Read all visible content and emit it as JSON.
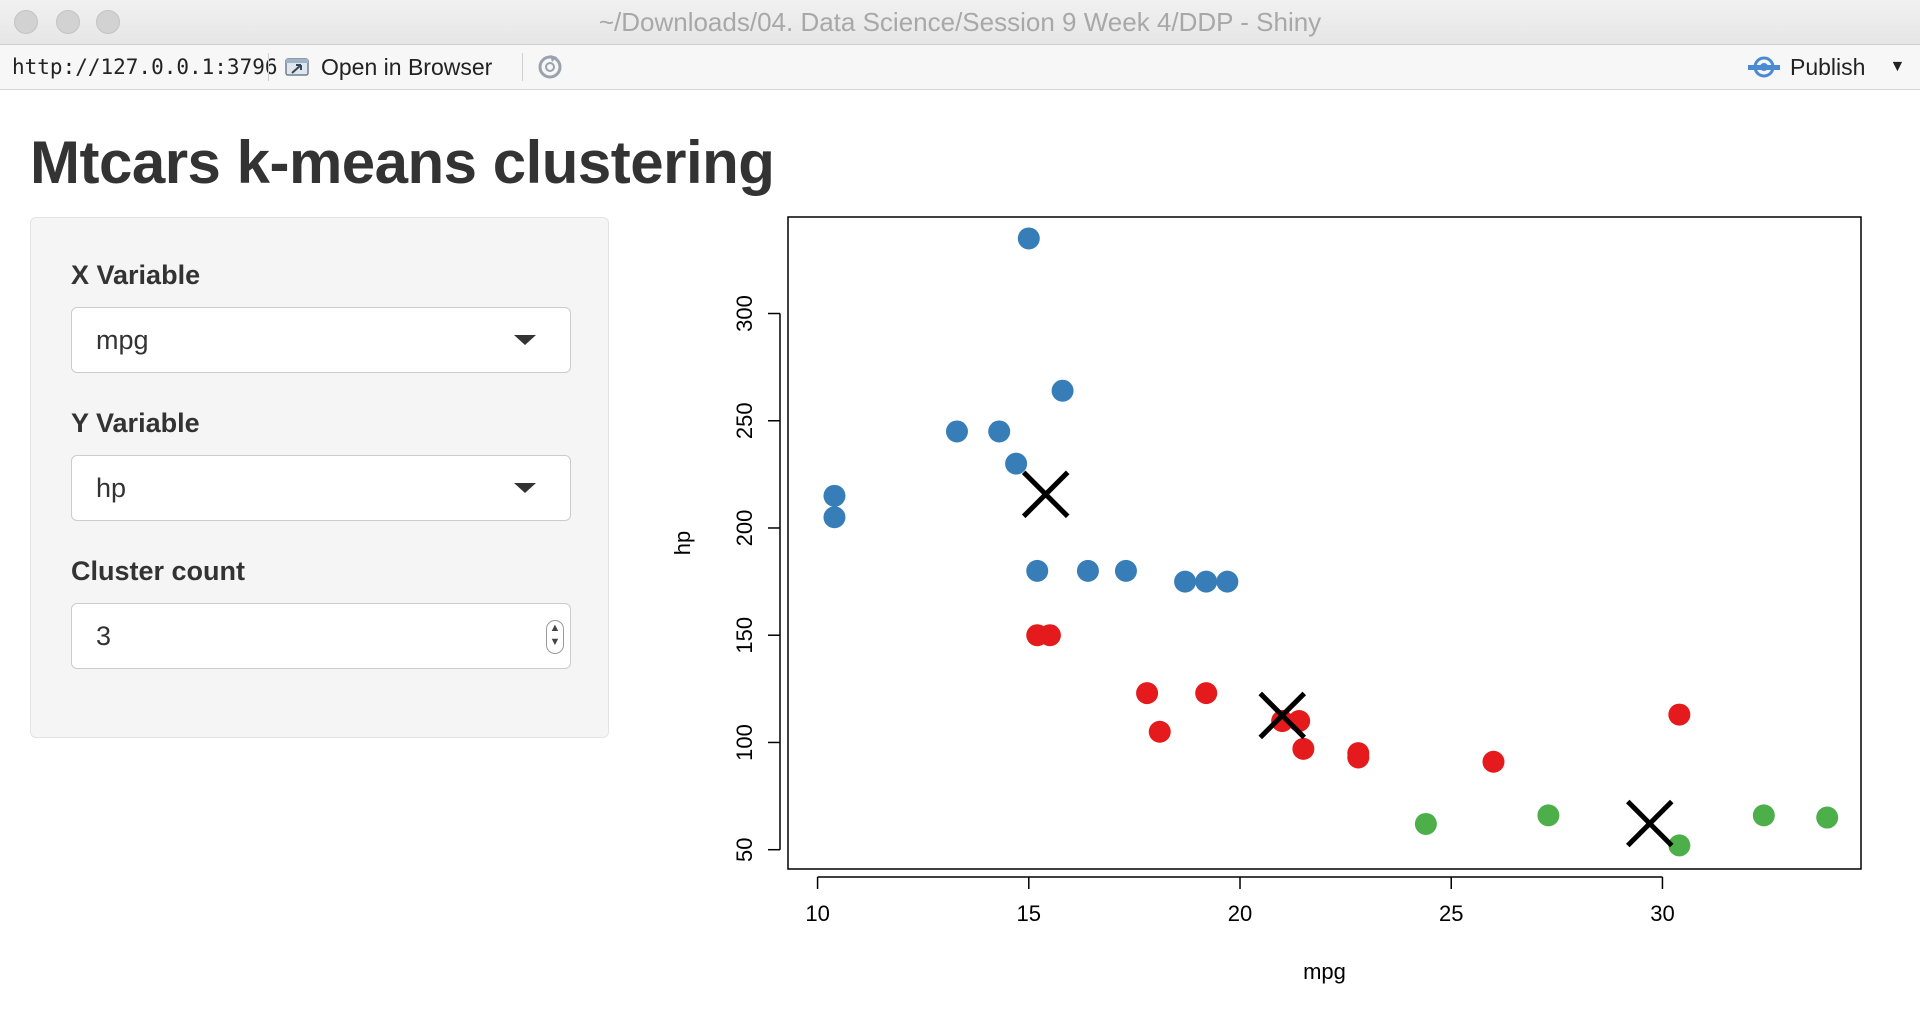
{
  "window": {
    "title": "~/Downloads/04. Data Science/Session 9 Week 4/DDP - Shiny"
  },
  "toolbar": {
    "url": "http://127.0.0.1:3796",
    "open_in_browser": "Open in Browser",
    "publish": "Publish"
  },
  "app": {
    "title": "Mtcars k-means clustering",
    "x_label": "X Variable",
    "x_value": "mpg",
    "y_label": "Y Variable",
    "y_value": "hp",
    "cluster_label": "Cluster count",
    "cluster_value": "3"
  },
  "colors": {
    "cluster1": "#377eb8",
    "cluster2": "#e41a1c",
    "cluster3": "#4daf4a",
    "centers": "#000000"
  },
  "chart_data": {
    "type": "scatter",
    "xlabel": "mpg",
    "ylabel": "hp",
    "xlim": [
      9.3,
      34.7
    ],
    "ylim": [
      41,
      345
    ],
    "xticks": [
      10,
      15,
      20,
      25,
      30
    ],
    "yticks": [
      50,
      100,
      150,
      200,
      250,
      300
    ],
    "grid": false,
    "series": [
      {
        "cluster": 1,
        "color": "#377eb8",
        "points": [
          [
            15.0,
            335
          ],
          [
            15.8,
            264
          ],
          [
            13.3,
            245
          ],
          [
            14.3,
            245
          ],
          [
            14.7,
            230
          ],
          [
            10.4,
            215
          ],
          [
            10.4,
            205
          ],
          [
            15.2,
            180
          ],
          [
            16.4,
            180
          ],
          [
            17.3,
            180
          ],
          [
            18.7,
            175
          ],
          [
            19.2,
            175
          ],
          [
            19.7,
            175
          ]
        ]
      },
      {
        "cluster": 2,
        "color": "#e41a1c",
        "points": [
          [
            15.2,
            150
          ],
          [
            15.5,
            150
          ],
          [
            17.8,
            123
          ],
          [
            19.2,
            123
          ],
          [
            18.1,
            105
          ],
          [
            21.0,
            110
          ],
          [
            21.0,
            110
          ],
          [
            21.4,
            110
          ],
          [
            21.5,
            97
          ],
          [
            22.8,
            95
          ],
          [
            22.8,
            93
          ],
          [
            26.0,
            91
          ],
          [
            30.4,
            113
          ]
        ]
      },
      {
        "cluster": 3,
        "color": "#4daf4a",
        "points": [
          [
            24.4,
            62
          ],
          [
            27.3,
            66
          ],
          [
            32.4,
            66
          ],
          [
            33.9,
            65
          ],
          [
            30.4,
            52
          ]
        ]
      }
    ],
    "centers": [
      [
        15.4,
        215.7
      ],
      [
        21.0,
        112.6
      ],
      [
        29.7,
        62.2
      ]
    ]
  }
}
